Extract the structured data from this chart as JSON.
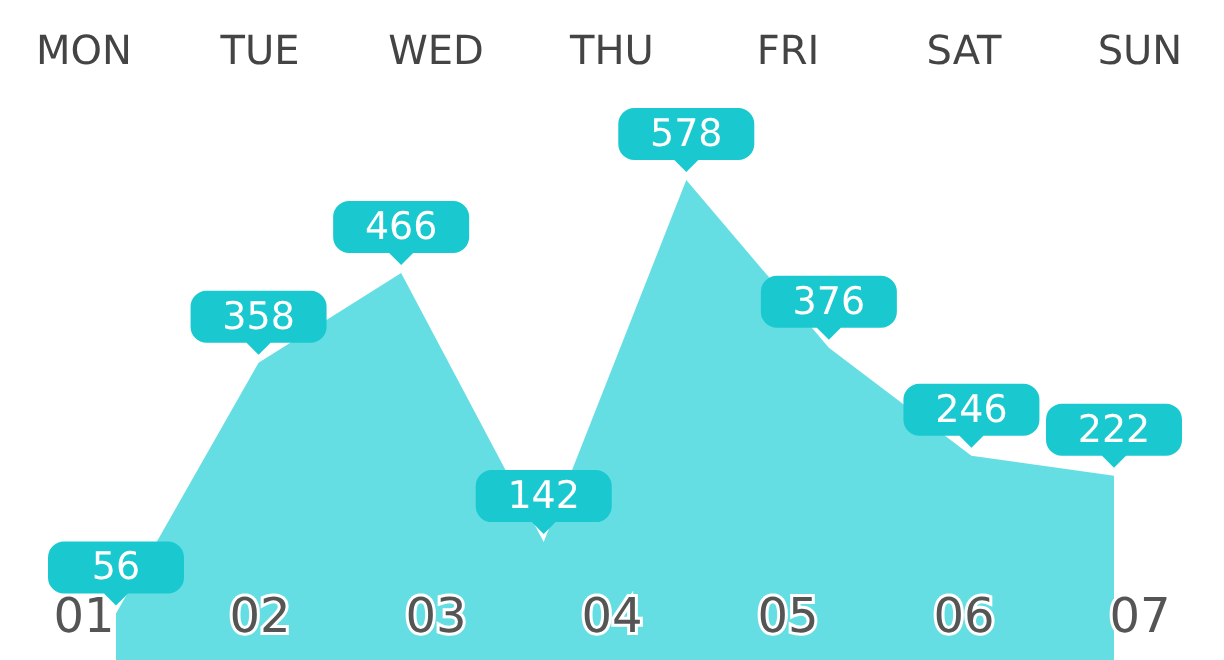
{
  "chart_data": {
    "type": "area",
    "categories": [
      null,
      null,
      null,
      null,
      null,
      null,
      null,
      null
    ],
    "series": [
      {
        "color": "#3fd6dc",
        "values": [
          56,
          358,
          466,
          142,
          578,
          376,
          246,
          222
        ]
      }
    ],
    "data_labels": true,
    "annotations": [
      "MON",
      "TUE",
      "WED",
      "THU",
      "FRI",
      "SAT",
      "SUN",
      "01",
      "02",
      "03",
      "04",
      "05",
      "06",
      "07"
    ]
  }
}
